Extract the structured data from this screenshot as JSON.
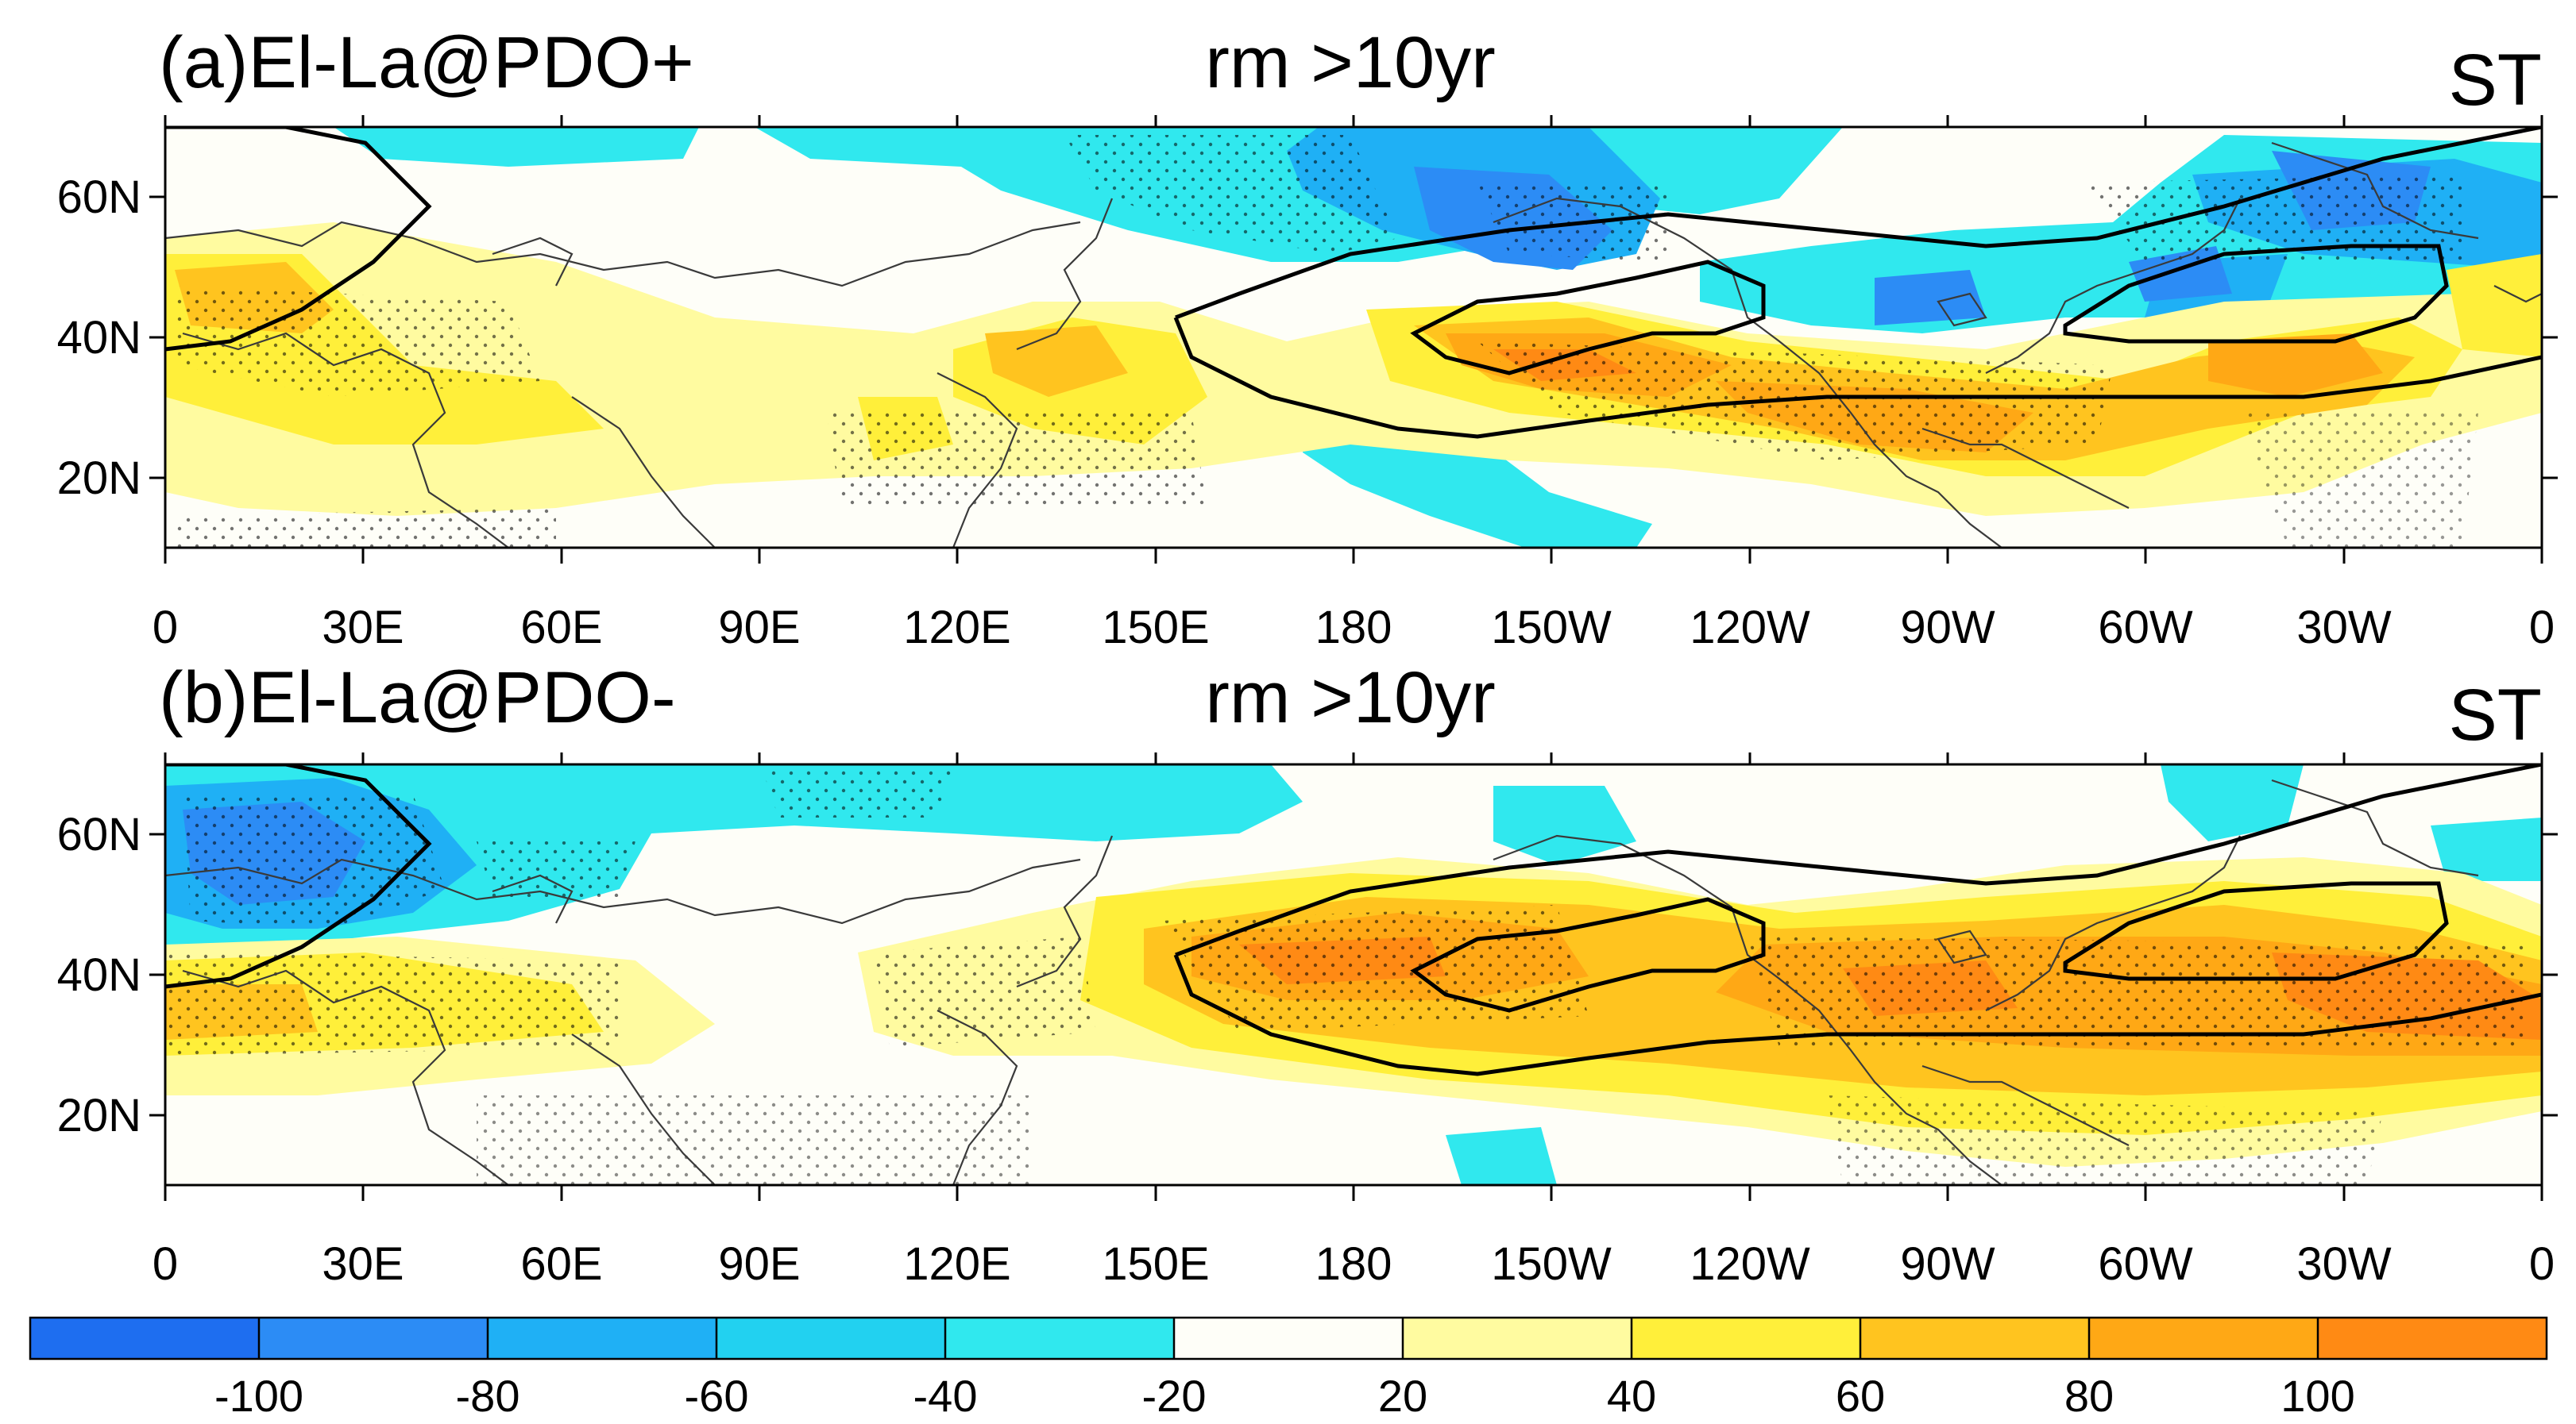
{
  "figure": {
    "colorbar": {
      "colors": [
        "#1e6ef0",
        "#2c8cf5",
        "#1fb0f5",
        "#22d1f0",
        "#30e8ee",
        "#fefef8",
        "#fffba0",
        "#ffef3a",
        "#ffc41f",
        "#ffa815",
        "#ff8a14"
      ],
      "tick_labels": [
        "-100",
        "-80",
        "-60",
        "-40",
        "-20",
        "20",
        "40",
        "60",
        "80",
        "100"
      ]
    },
    "panels": [
      {
        "id": "a",
        "title_left": "(a)El-La@PDO+",
        "title_center": "rm >10yr",
        "title_right": "ST",
        "lon_labels": [
          "0",
          "30E",
          "60E",
          "90E",
          "120E",
          "150E",
          "180",
          "150W",
          "120W",
          "90W",
          "60W",
          "30W",
          "0"
        ],
        "lat_labels": [
          "60N",
          "40N",
          "20N"
        ]
      },
      {
        "id": "b",
        "title_left": "(b)El-La@PDO-",
        "title_center": "rm >10yr",
        "title_right": "ST",
        "lon_labels": [
          "0",
          "30E",
          "60E",
          "90E",
          "120E",
          "150E",
          "180",
          "150W",
          "120W",
          "90W",
          "60W",
          "30W",
          "0"
        ],
        "lat_labels": [
          "60N",
          "40N",
          "20N"
        ]
      }
    ]
  }
}
